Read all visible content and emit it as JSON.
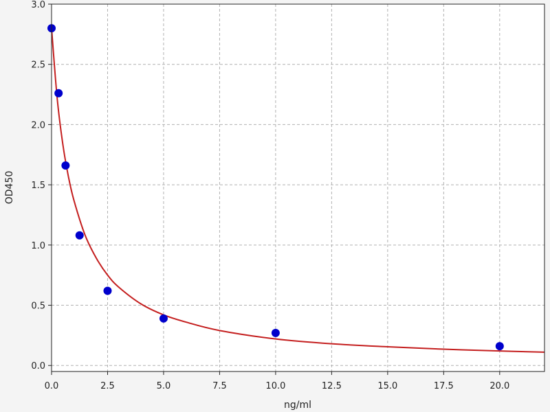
{
  "chart_data": {
    "type": "scatter",
    "title": "",
    "xlabel": "ng/ml",
    "ylabel": "OD450",
    "xlim": [
      0,
      22
    ],
    "ylim": [
      -0.05,
      3.0
    ],
    "xticks": [
      "0.0",
      "2.5",
      "5.0",
      "7.5",
      "10.0",
      "12.5",
      "15.0",
      "17.5",
      "20.0"
    ],
    "yticks": [
      "0.0",
      "0.5",
      "1.0",
      "1.5",
      "2.0",
      "2.5",
      "3.0"
    ],
    "grid": true,
    "series": [
      {
        "kind": "points",
        "color": "#0000cc",
        "x": [
          0,
          0.3125,
          0.625,
          1.25,
          2.5,
          5,
          10,
          20
        ],
        "y": [
          2.8,
          2.26,
          1.66,
          1.08,
          0.62,
          0.39,
          0.27,
          0.16
        ]
      },
      {
        "kind": "fit-curve",
        "color": "#c41e1e",
        "x": [
          0,
          0.25,
          0.5,
          0.75,
          1,
          1.5,
          2,
          2.5,
          3,
          4,
          5,
          6,
          7.5,
          10,
          12.5,
          15,
          17.5,
          20,
          22
        ],
        "y": [
          2.8,
          2.22,
          1.84,
          1.57,
          1.37,
          1.08,
          0.89,
          0.75,
          0.65,
          0.51,
          0.42,
          0.36,
          0.29,
          0.22,
          0.18,
          0.155,
          0.135,
          0.12,
          0.11
        ]
      }
    ]
  }
}
